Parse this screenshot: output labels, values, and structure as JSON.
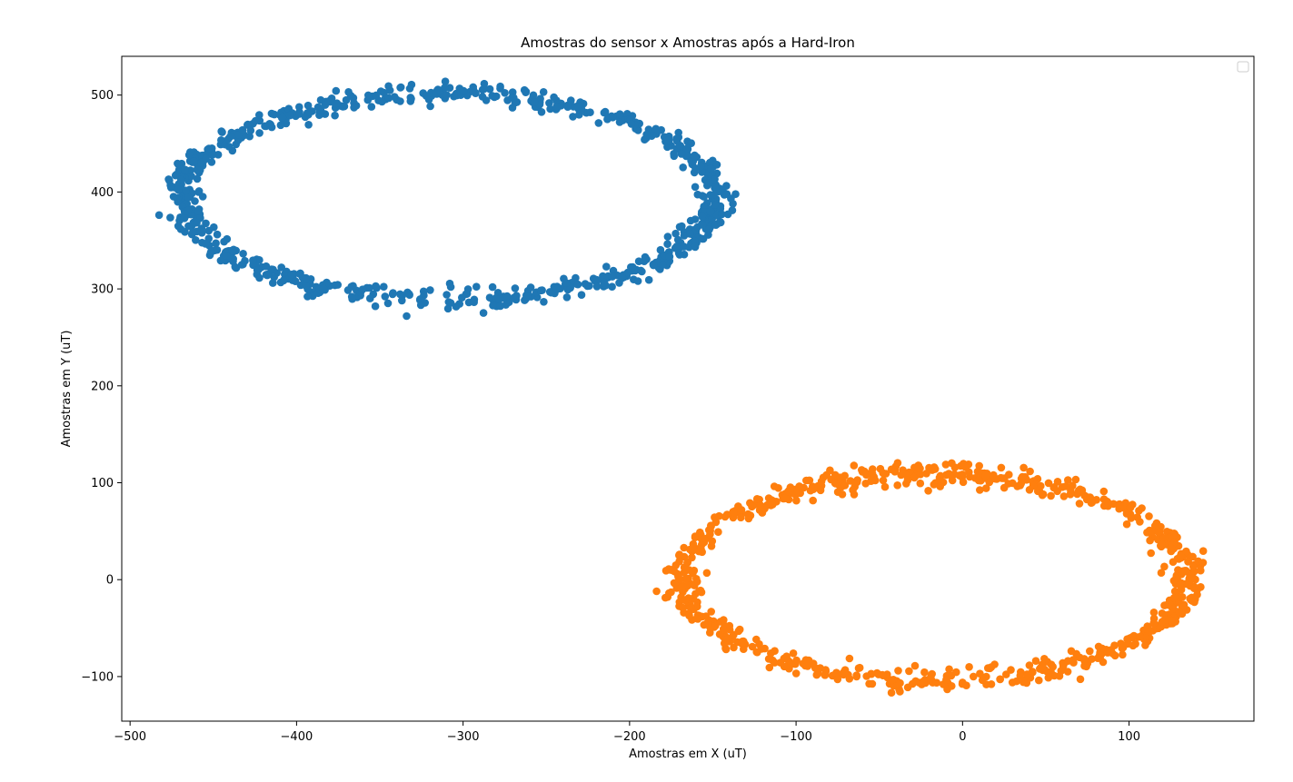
{
  "chart_data": {
    "type": "scatter",
    "title": "Amostras do sensor x Amostras após a Hard-Iron",
    "xlabel": "Amostras em X (uT)",
    "ylabel": "Amostras em Y (uT)",
    "xlim": [
      -505,
      175
    ],
    "ylim": [
      -146,
      540
    ],
    "xticks": [
      -500,
      -400,
      -300,
      -200,
      -100,
      0,
      100
    ],
    "xtick_labels": [
      "−500",
      "−400",
      "−300",
      "−200",
      "−100",
      "0",
      "100"
    ],
    "yticks": [
      -100,
      0,
      100,
      200,
      300,
      400,
      500
    ],
    "ytick_labels": [
      "−100",
      "0",
      "100",
      "200",
      "300",
      "400",
      "500"
    ],
    "grid": false,
    "legend": "upper right (empty)",
    "series": [
      {
        "color": "#1f77b4",
        "shape": "ellipse",
        "center": [
          -309,
          395
        ],
        "semi_axes": [
          160,
          106
        ],
        "approx_points": 800,
        "x_range": [
          -472,
          -140
        ],
        "y_range": [
          280,
          510
        ]
      },
      {
        "color": "#ff7f0e",
        "shape": "ellipse",
        "center": [
          -17,
          2
        ],
        "semi_axes": [
          152,
          106
        ],
        "approx_points": 800,
        "x_range": [
          -180,
          143
        ],
        "y_range": [
          -112,
          118
        ]
      }
    ]
  }
}
